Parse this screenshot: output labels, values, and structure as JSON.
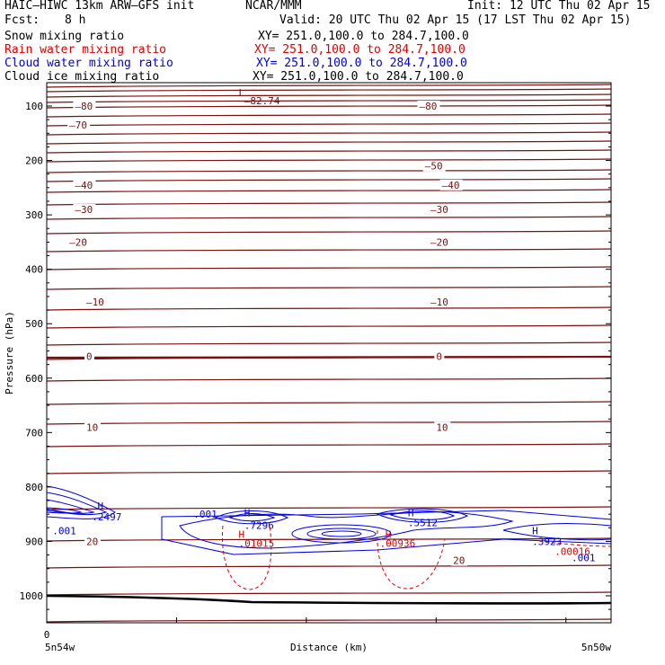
{
  "header": {
    "model": "HAIC–HIWC 13km ARW–GFS init",
    "org": "NCAR/MMM",
    "init": "Init: 12 UTC Thu 02 Apr 15",
    "fcst_label": "Fcst:",
    "fcst_value": "8 h",
    "valid": "Valid: 20 UTC Thu 02 Apr 15 (17 LST Thu 02 Apr 15)"
  },
  "fields": [
    {
      "name": "Snow mixing ratio",
      "xy": "XY= 251.0,100.0 to 284.7,100.0",
      "color": "#000000"
    },
    {
      "name": "Rain water mixing ratio",
      "xy": "XY= 251.0,100.0 to 284.7,100.0",
      "color": "#e00000"
    },
    {
      "name": "Cloud water mixing ratio",
      "xy": "XY= 251.0,100.0 to 284.7,100.0",
      "color": "#0000e0"
    },
    {
      "name": "Cloud ice mixing ratio",
      "xy": "XY= 251.0,100.0 to 284.7,100.0",
      "color": "#000000"
    }
  ],
  "chart_data": {
    "type": "line",
    "ylabel": "Pressure (hPa)",
    "xlabel": "Distance (km)",
    "yticks": [
      100,
      200,
      300,
      400,
      500,
      600,
      700,
      800,
      900,
      1000
    ],
    "x_origin_label": "0",
    "x_left_label": "5n54w",
    "x_right_label": "5n50w",
    "ylim": [
      50,
      1050
    ],
    "temperature_labels": [
      {
        "text": "–80",
        "p": 100,
        "x": 0.05
      },
      {
        "text": "–80",
        "p": 100,
        "x": 0.66
      },
      {
        "text": "–70",
        "p": 135,
        "x": 0.04
      },
      {
        "text": "–50",
        "p": 210,
        "x": 0.67
      },
      {
        "text": "–40",
        "p": 245,
        "x": 0.05
      },
      {
        "text": "–40",
        "p": 245,
        "x": 0.7
      },
      {
        "text": "–30",
        "p": 290,
        "x": 0.05
      },
      {
        "text": "–30",
        "p": 290,
        "x": 0.68
      },
      {
        "text": "–20",
        "p": 350,
        "x": 0.04
      },
      {
        "text": "–20",
        "p": 350,
        "x": 0.68
      },
      {
        "text": "–10",
        "p": 460,
        "x": 0.07
      },
      {
        "text": "–10",
        "p": 460,
        "x": 0.68
      },
      {
        "text": "0",
        "p": 560,
        "x": 0.07
      },
      {
        "text": "0",
        "p": 560,
        "x": 0.69
      },
      {
        "text": "10",
        "p": 690,
        "x": 0.07
      },
      {
        "text": "10",
        "p": 690,
        "x": 0.69
      },
      {
        "text": "20",
        "p": 900,
        "x": 0.07
      },
      {
        "text": "20",
        "p": 935,
        "x": 0.72
      }
    ],
    "extrema_labels": [
      {
        "text": "L",
        "p": 75,
        "x": 0.34,
        "color": "#7a1010"
      },
      {
        "text": "–82.74",
        "p": 90,
        "x": 0.35,
        "color": "#7a1010"
      },
      {
        "text": "H",
        "p": 835,
        "x": 0.09,
        "color": "#0000e0"
      },
      {
        "text": ".2497",
        "p": 855,
        "x": 0.08,
        "color": "#0000e0"
      },
      {
        "text": ".001",
        "p": 880,
        "x": 0.01,
        "color": "#0000e0"
      },
      {
        "text": ".001",
        "p": 850,
        "x": 0.26,
        "color": "#0000e0"
      },
      {
        "text": "H",
        "p": 847,
        "x": 0.35,
        "color": "#0000e0"
      },
      {
        "text": ".7296",
        "p": 870,
        "x": 0.35,
        "color": "#0000e0"
      },
      {
        "text": "H",
        "p": 887,
        "x": 0.34,
        "color": "#e00000"
      },
      {
        "text": ".01015",
        "p": 903,
        "x": 0.34,
        "color": "#e00000"
      },
      {
        "text": "H",
        "p": 847,
        "x": 0.64,
        "color": "#0000e0"
      },
      {
        "text": ".5512",
        "p": 865,
        "x": 0.64,
        "color": "#0000e0"
      },
      {
        "text": "H",
        "p": 887,
        "x": 0.6,
        "color": "#e00000"
      },
      {
        "text": ".00936",
        "p": 903,
        "x": 0.59,
        "color": "#e00000"
      },
      {
        "text": "H",
        "p": 880,
        "x": 0.86,
        "color": "#0000e0"
      },
      {
        "text": ".3923",
        "p": 900,
        "x": 0.86,
        "color": "#0000e0"
      },
      {
        "text": ".00016",
        "p": 918,
        "x": 0.9,
        "color": "#e00000"
      },
      {
        "text": ".001",
        "p": 930,
        "x": 0.93,
        "color": "#0000e0"
      }
    ]
  }
}
